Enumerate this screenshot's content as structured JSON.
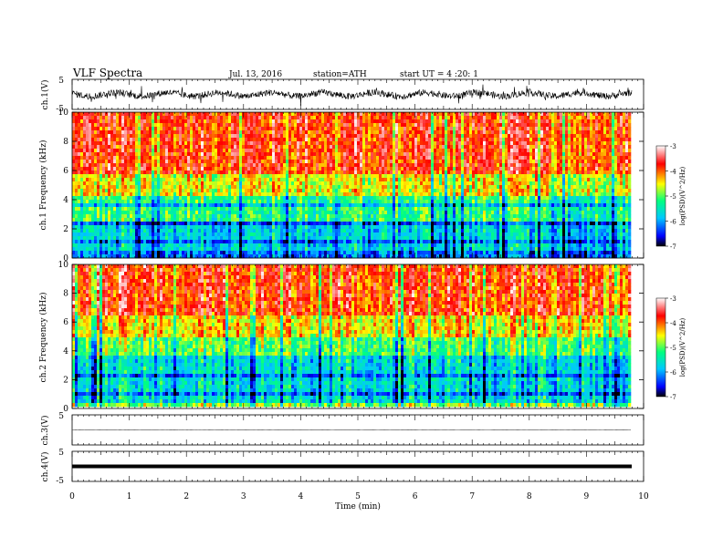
{
  "header": {
    "title": "VLF Spectra",
    "date": "Jul. 13, 2016",
    "station": "station=ATH",
    "start": "start UT = 4 :20: 1"
  },
  "chart_data": [
    {
      "type": "line",
      "ylabel": "ch.1(V)",
      "ylim": [
        -5,
        5
      ],
      "yticks": [
        "5",
        "-5"
      ],
      "trace": "dense noisy oscillation around zero, amplitude about ±2 V, spikes to about ±3 V"
    },
    {
      "type": "heatmap",
      "ylabel": "ch.1 Frequency (kHz)",
      "ylim": [
        0,
        10
      ],
      "yticks": [
        "0",
        "2",
        "4",
        "6",
        "8",
        "10"
      ],
      "xlim": [
        0,
        10
      ],
      "colorbar": {
        "label": "log(PSD)(V^2/Hz)",
        "ticks": [
          "-3",
          "-4",
          "-5",
          "-6",
          "-7"
        ],
        "range": [
          -7,
          -3
        ],
        "colors": [
          "#000000",
          "#0000ff",
          "#00c8ff",
          "#00ff80",
          "#ffff00",
          "#ff0000",
          "#ffffff"
        ]
      },
      "bands": [
        {
          "f": [
            0,
            0.5
          ],
          "level": -6.2
        },
        {
          "f": [
            0.5,
            2.5
          ],
          "level": -5.7
        },
        {
          "f": [
            2.5,
            4.2
          ],
          "level": -5.2
        },
        {
          "f": [
            4.2,
            5.8
          ],
          "level": -4.5
        },
        {
          "f": [
            5.8,
            10
          ],
          "level": -3.8
        }
      ]
    },
    {
      "type": "heatmap",
      "ylabel": "ch.2 Frequency (kHz)",
      "ylim": [
        0,
        10
      ],
      "yticks": [
        "0",
        "2",
        "4",
        "6",
        "8",
        "10"
      ],
      "xlim": [
        0,
        10
      ],
      "colorbar": {
        "label": "log(PSD)(V^2/Hz)",
        "ticks": [
          "-3",
          "-4",
          "-5",
          "-6",
          "-7"
        ],
        "range": [
          -7,
          -3
        ],
        "colors": [
          "#000000",
          "#0000ff",
          "#00c8ff",
          "#00ff80",
          "#ffff00",
          "#ff0000",
          "#ffffff"
        ]
      },
      "bands": [
        {
          "f": [
            0,
            0.5
          ],
          "level": -4.8
        },
        {
          "f": [
            0.5,
            3.5
          ],
          "level": -5.6
        },
        {
          "f": [
            3.5,
            5.0
          ],
          "level": -5.0
        },
        {
          "f": [
            5.0,
            6.5
          ],
          "level": -4.4
        },
        {
          "f": [
            6.5,
            10
          ],
          "level": -3.8
        }
      ]
    },
    {
      "type": "line",
      "ylabel": "ch.3(V)",
      "ylim": [
        -5,
        5
      ],
      "yticks": [
        "5"
      ],
      "value": 0
    },
    {
      "type": "line",
      "ylabel": "ch.4(V)",
      "ylim": [
        -5,
        5
      ],
      "yticks": [
        "5",
        "-5"
      ],
      "value": 0
    }
  ],
  "xaxis": {
    "label": "Time (min)",
    "range": [
      0,
      10
    ],
    "ticks": [
      "0",
      "1",
      "2",
      "3",
      "4",
      "5",
      "6",
      "7",
      "8",
      "9",
      "10"
    ]
  }
}
